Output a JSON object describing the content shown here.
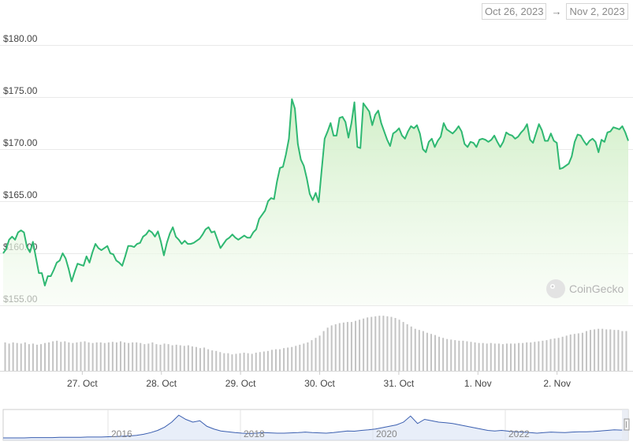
{
  "range_selector": {
    "from": "Oct 26, 2023",
    "arrow": "→",
    "to": "Nov 2, 2023"
  },
  "watermark": "CoinGecko",
  "colors": {
    "line": "#2fb872",
    "area_top": "#cfeec5",
    "area_bottom": "#f6fcf3",
    "volume": "#c4c4c4",
    "navigator_line": "#3b5fb0",
    "navigator_fill": "#d6e0f4",
    "grid": "#e9e9e9"
  },
  "chart_data": {
    "type": "area",
    "y_ticks": [
      "$155.00",
      "$160.00",
      "$165.00",
      "$170.00",
      "$175.00",
      "$180.00"
    ],
    "ylim": [
      155,
      180
    ],
    "x_ticks": [
      "27. Oct",
      "28. Oct",
      "29. Oct",
      "30. Oct",
      "31. Oct",
      "1. Nov",
      "2. Nov"
    ],
    "xlim_days": [
      26.0,
      33.9
    ],
    "grid": "horizontal",
    "series": [
      {
        "values": [
          160.0,
          160.4,
          161.3,
          161.6,
          161.3,
          162.0,
          162.2,
          162.0,
          160.6,
          160.1,
          161.1,
          159.6,
          158.1,
          158.1,
          156.9,
          157.8,
          157.8,
          158.4,
          159.1,
          159.3,
          160.0,
          159.5,
          158.5,
          157.3,
          158.2,
          159.0,
          158.9,
          158.8,
          159.7,
          159.1,
          160.1,
          160.9,
          160.5,
          160.3,
          160.5,
          160.7,
          160.0,
          159.9,
          159.3,
          159.1,
          158.8,
          159.7,
          160.7,
          160.7,
          160.6,
          160.9,
          161.0,
          161.6,
          161.8,
          162.2,
          162.0,
          161.6,
          162.1,
          161.1,
          159.8,
          161.0,
          161.9,
          162.5,
          161.6,
          161.3,
          160.9,
          161.2,
          160.9,
          160.9,
          161.0,
          161.2,
          161.4,
          161.8,
          162.3,
          162.5,
          162.0,
          162.1,
          161.3,
          160.5,
          160.9,
          161.3,
          161.5,
          161.8,
          161.5,
          161.3,
          161.5,
          161.7,
          161.5,
          161.5,
          162.0,
          162.3,
          163.3,
          163.7,
          164.1,
          165.0,
          165.3,
          165.2,
          166.9,
          168.2,
          168.3,
          169.5,
          171.0,
          174.8,
          173.9,
          170.5,
          169.0,
          168.4,
          167.2,
          165.7,
          165.1,
          165.8,
          164.9,
          168.0,
          171.0,
          171.7,
          172.5,
          171.3,
          171.3,
          173.0,
          173.1,
          172.6,
          171.1,
          172.5,
          174.5,
          170.2,
          170.1,
          174.4,
          174.0,
          173.6,
          172.3,
          173.3,
          173.7,
          172.5,
          171.7,
          170.9,
          170.3,
          171.5,
          171.7,
          172.0,
          171.3,
          171.0,
          171.7,
          172.2,
          172.0,
          172.3,
          171.5,
          170.0,
          169.7,
          170.7,
          171.0,
          170.2,
          170.8,
          171.2,
          172.5,
          171.9,
          171.7,
          171.5,
          171.8,
          172.2,
          171.7,
          170.5,
          170.2,
          170.7,
          170.6,
          170.2,
          170.9,
          171.0,
          170.9,
          170.7,
          170.9,
          171.3,
          170.7,
          170.2,
          170.7,
          171.6,
          171.4,
          171.3,
          171.0,
          171.2,
          171.6,
          171.9,
          172.4,
          170.9,
          170.6,
          171.5,
          172.4,
          171.8,
          170.8,
          170.8,
          171.5,
          170.8,
          170.6,
          168.1,
          168.2,
          168.4,
          168.6,
          169.3,
          170.7,
          171.4,
          171.3,
          170.8,
          170.4,
          170.8,
          171.0,
          170.7,
          169.7,
          170.9,
          170.7,
          171.6,
          171.7,
          172.1,
          172.0,
          171.9,
          172.2,
          171.6,
          170.8
        ]
      }
    ],
    "volume_relative": [
      0.5,
      0.48,
      0.5,
      0.49,
      0.48,
      0.5,
      0.47,
      0.48,
      0.46,
      0.47,
      0.49,
      0.5,
      0.52,
      0.53,
      0.51,
      0.52,
      0.5,
      0.49,
      0.5,
      0.51,
      0.52,
      0.5,
      0.49,
      0.5,
      0.5,
      0.49,
      0.5,
      0.51,
      0.5,
      0.52,
      0.5,
      0.49,
      0.5,
      0.5,
      0.49,
      0.47,
      0.48,
      0.5,
      0.47,
      0.46,
      0.48,
      0.47,
      0.45,
      0.46,
      0.45,
      0.44,
      0.45,
      0.43,
      0.42,
      0.4,
      0.41,
      0.38,
      0.36,
      0.35,
      0.33,
      0.31,
      0.31,
      0.29,
      0.3,
      0.31,
      0.32,
      0.31,
      0.3,
      0.32,
      0.33,
      0.34,
      0.35,
      0.37,
      0.38,
      0.38,
      0.4,
      0.41,
      0.42,
      0.44,
      0.46,
      0.48,
      0.5,
      0.54,
      0.58,
      0.62,
      0.7,
      0.76,
      0.8,
      0.82,
      0.84,
      0.85,
      0.86,
      0.86,
      0.88,
      0.9,
      0.92,
      0.94,
      0.95,
      0.96,
      0.97,
      0.97,
      0.96,
      0.95,
      0.93,
      0.9,
      0.86,
      0.82,
      0.78,
      0.74,
      0.72,
      0.7,
      0.67,
      0.65,
      0.63,
      0.6,
      0.58,
      0.56,
      0.55,
      0.54,
      0.53,
      0.53,
      0.52,
      0.51,
      0.5,
      0.49,
      0.49,
      0.48,
      0.49,
      0.48,
      0.48,
      0.47,
      0.48,
      0.48,
      0.48,
      0.49,
      0.49,
      0.5,
      0.5,
      0.51,
      0.52,
      0.53,
      0.54,
      0.56,
      0.57,
      0.58,
      0.6,
      0.62,
      0.64,
      0.65,
      0.66,
      0.67,
      0.7,
      0.72,
      0.73,
      0.74,
      0.74,
      0.73,
      0.73,
      0.72,
      0.72,
      0.7,
      0.7
    ],
    "navigator": {
      "x_labels": [
        "2016",
        "2018",
        "2020",
        "2022"
      ],
      "values": [
        0.03,
        0.03,
        0.03,
        0.03,
        0.04,
        0.04,
        0.04,
        0.04,
        0.05,
        0.05,
        0.05,
        0.05,
        0.06,
        0.06,
        0.06,
        0.07,
        0.08,
        0.09,
        0.1,
        0.12,
        0.16,
        0.22,
        0.3,
        0.42,
        0.6,
        0.85,
        0.7,
        0.6,
        0.65,
        0.45,
        0.35,
        0.28,
        0.25,
        0.22,
        0.2,
        0.19,
        0.2,
        0.22,
        0.21,
        0.2,
        0.2,
        0.21,
        0.22,
        0.24,
        0.22,
        0.21,
        0.2,
        0.22,
        0.25,
        0.28,
        0.27,
        0.3,
        0.32,
        0.35,
        0.4,
        0.45,
        0.5,
        0.6,
        0.82,
        0.55,
        0.7,
        0.65,
        0.6,
        0.58,
        0.55,
        0.5,
        0.45,
        0.4,
        0.35,
        0.3,
        0.28,
        0.3,
        0.27,
        0.25,
        0.24,
        0.22,
        0.2,
        0.22,
        0.24,
        0.23,
        0.22,
        0.24,
        0.25,
        0.25,
        0.26,
        0.28,
        0.3,
        0.32,
        0.31,
        0.33
      ]
    }
  }
}
